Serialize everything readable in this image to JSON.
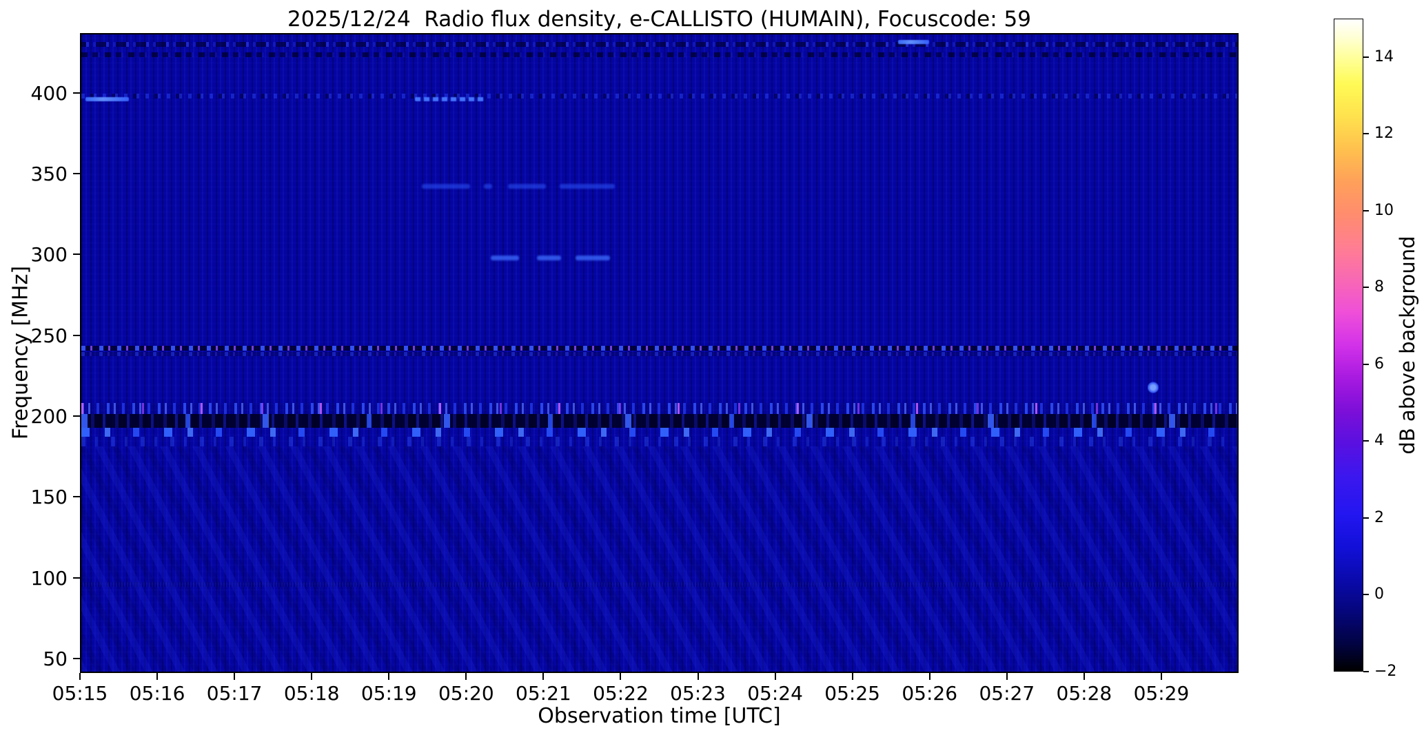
{
  "chart_data": {
    "type": "heatmap",
    "title": "2025/12/24  Radio flux density, e-CALLISTO (HUMAIN), Focuscode: 59",
    "xlabel": "Observation time [UTC]",
    "ylabel": "Frequency [MHz]",
    "x_ticks": [
      "05:15",
      "05:16",
      "05:17",
      "05:18",
      "05:19",
      "05:20",
      "05:21",
      "05:22",
      "05:23",
      "05:24",
      "05:25",
      "05:26",
      "05:27",
      "05:28",
      "05:29"
    ],
    "x_tick_interval_minutes": 1,
    "x_range_minutes": [
      0,
      15
    ],
    "y_ticks": [
      "400",
      "350",
      "300",
      "250",
      "200",
      "150",
      "100",
      "50"
    ],
    "y_tick_values": [
      400,
      350,
      300,
      250,
      200,
      150,
      100,
      50
    ],
    "y_range_mhz": [
      41,
      437
    ],
    "grid": false,
    "legend": "none",
    "background_level_db": 0,
    "background_color": "#0404a0",
    "colorbar": {
      "label": "dB above background",
      "position": "right",
      "colormap": "gnuplot2",
      "range_db": [
        -2,
        15
      ],
      "ticks": [
        {
          "label": "14",
          "value": 14
        },
        {
          "label": "12",
          "value": 12
        },
        {
          "label": "10",
          "value": 10
        },
        {
          "label": "8",
          "value": 8
        },
        {
          "label": "6",
          "value": 6
        },
        {
          "label": "4",
          "value": 4
        },
        {
          "label": "2",
          "value": 2
        },
        {
          "label": "0",
          "value": 0
        },
        {
          "label": "−2",
          "value": -2
        }
      ]
    },
    "features": [
      {
        "name": "rfi-speckle-row-431mhz",
        "kind": "noise-row",
        "t0": 0,
        "t1": 15,
        "f_hi": 432.5,
        "f_lo": 429.5,
        "approx_db": 1
      },
      {
        "name": "rfi-dark-row-424mhz",
        "kind": "noise-row-dark",
        "t0": 0,
        "t1": 15,
        "f_hi": 426,
        "f_lo": 423,
        "approx_db": -1
      },
      {
        "name": "speckle-line-399mhz",
        "kind": "speckle-line",
        "t0": 0,
        "t1": 15,
        "f_hi": 400.5,
        "f_lo": 397.5,
        "approx_db": 1
      },
      {
        "name": "bright-streak-397mhz-0515",
        "kind": "streak",
        "t0": 0.05,
        "t1": 0.62,
        "f_hi": 398,
        "f_lo": 395.5,
        "approx_db": 3
      },
      {
        "name": "bright-streak-397mhz-0519",
        "kind": "streak-dotted",
        "t0": 4.32,
        "t1": 5.21,
        "f_hi": 398,
        "f_lo": 395.5,
        "approx_db": 3
      },
      {
        "name": "bright-streak-432mhz-0525",
        "kind": "streak",
        "t0": 10.57,
        "t1": 10.98,
        "f_hi": 433.5,
        "f_lo": 431,
        "approx_db": 3
      },
      {
        "name": "dash-343mhz-a",
        "kind": "dash",
        "t0": 4.41,
        "t1": 5.03,
        "f_hi": 344.5,
        "f_lo": 341.5,
        "approx_db": 2
      },
      {
        "name": "dash-343mhz-b",
        "kind": "dash",
        "t0": 5.21,
        "t1": 5.32,
        "f_hi": 344.5,
        "f_lo": 341.5,
        "approx_db": 2
      },
      {
        "name": "dash-343mhz-c",
        "kind": "dash",
        "t0": 5.52,
        "t1": 6.01,
        "f_hi": 344.5,
        "f_lo": 341.5,
        "approx_db": 2
      },
      {
        "name": "dash-343mhz-d",
        "kind": "dash",
        "t0": 6.19,
        "t1": 6.91,
        "f_hi": 344.5,
        "f_lo": 341.5,
        "approx_db": 2
      },
      {
        "name": "dash-298mhz-a",
        "kind": "dash-bright",
        "t0": 5.3,
        "t1": 5.67,
        "f_hi": 300,
        "f_lo": 297,
        "approx_db": 3
      },
      {
        "name": "dash-298mhz-b",
        "kind": "dash-bright",
        "t0": 5.9,
        "t1": 6.21,
        "f_hi": 300,
        "f_lo": 297,
        "approx_db": 3
      },
      {
        "name": "dash-298mhz-c",
        "kind": "dash-bright",
        "t0": 6.4,
        "t1": 6.84,
        "f_hi": 300,
        "f_lo": 297,
        "approx_db": 3
      },
      {
        "name": "dotted-carrier-243mhz",
        "kind": "dotted-line",
        "t0": 0,
        "t1": 15,
        "f_hi": 244.5,
        "f_lo": 241.5,
        "approx_db": 3
      },
      {
        "name": "faint-carrier-239mhz",
        "kind": "dotted-line-faint",
        "t0": 0,
        "t1": 15,
        "f_hi": 240.5,
        "f_lo": 238,
        "approx_db": 1
      },
      {
        "name": "bright-dot-218mhz-0528",
        "kind": "dot",
        "t0": 13.8,
        "t1": 13.95,
        "f_hi": 222,
        "f_lo": 215,
        "approx_db": 4
      },
      {
        "name": "speckle-row-206mhz",
        "kind": "bright-speckles",
        "t0": 0,
        "t1": 15,
        "f_hi": 209,
        "f_lo": 202,
        "approx_db": 5
      },
      {
        "name": "dark-band-198mhz",
        "kind": "dark-band",
        "t0": 0,
        "t1": 15,
        "f_hi": 202,
        "f_lo": 193.5,
        "approx_db": -2
      },
      {
        "name": "bright-dash-row-191mhz",
        "kind": "bright-dashes",
        "t0": 0,
        "t1": 15,
        "f_hi": 193.5,
        "f_lo": 188,
        "approx_db": 4
      },
      {
        "name": "faint-row-185mhz",
        "kind": "faint-row",
        "t0": 0,
        "t1": 15,
        "f_hi": 188,
        "f_lo": 182,
        "approx_db": 1
      },
      {
        "name": "striation-line-97mhz",
        "kind": "noise-row-faint",
        "t0": 0,
        "t1": 15,
        "f_hi": 98,
        "f_lo": 95,
        "approx_db": 0
      },
      {
        "name": "diagonal-interference-ripples",
        "kind": "diag-texture",
        "t0": 0,
        "t1": 15,
        "f_hi": 182,
        "f_lo": 41,
        "approx_db": 0.5
      }
    ]
  }
}
